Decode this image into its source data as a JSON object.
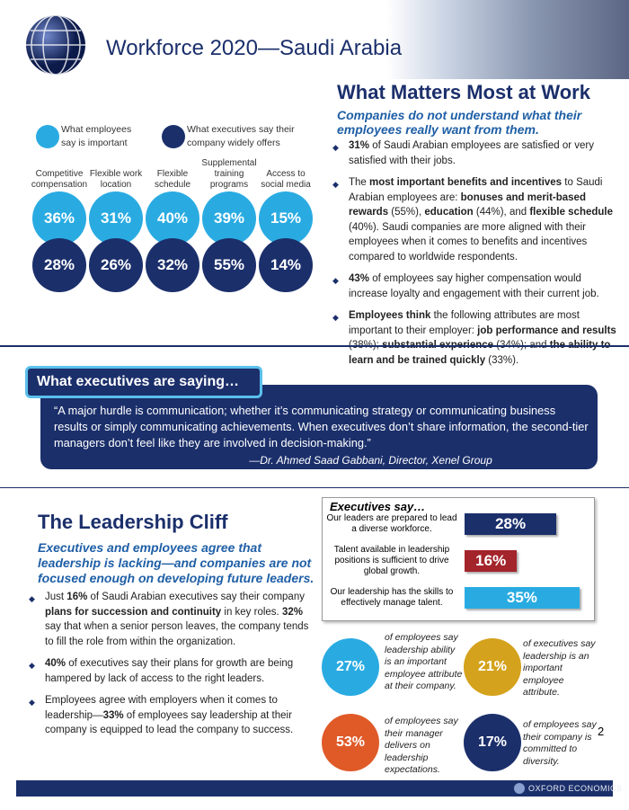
{
  "header": {
    "title": "Workforce 2020—Saudi Arabia"
  },
  "what_matters": {
    "title": "What Matters Most at Work",
    "subtitle": "Companies do not understand what their employees really want from them.",
    "legend": [
      {
        "label": "What employees say is important",
        "color": "#29abe2"
      },
      {
        "label": "What executives say their company widely offers",
        "color": "#1b2f6b"
      }
    ],
    "categories": [
      {
        "label": "Competitive compensation",
        "employees": "36%",
        "executives": "28%"
      },
      {
        "label": "Flexible work location",
        "employees": "31%",
        "executives": "26%"
      },
      {
        "label": "Flexible schedule",
        "employees": "40%",
        "executives": "32%"
      },
      {
        "label": "Supplemental training programs",
        "employees": "39%",
        "executives": "55%"
      },
      {
        "label": "Access to social media",
        "employees": "15%",
        "executives": "14%"
      }
    ],
    "bullets": [
      [
        {
          "text": "31%",
          "bold": true
        },
        {
          "text": " of Saudi Arabian employees are satisfied or very satisfied with their jobs."
        }
      ],
      [
        {
          "text": "The "
        },
        {
          "text": "most important benefits and incentives",
          "bold": true
        },
        {
          "text": " to Saudi Arabian employees are: "
        },
        {
          "text": "bonuses and merit-based rewards",
          "bold": true
        },
        {
          "text": " (55%), "
        },
        {
          "text": "education",
          "bold": true
        },
        {
          "text": " (44%), and "
        },
        {
          "text": "flexible schedule",
          "bold": true
        },
        {
          "text": " (40%). Saudi companies are more aligned with their employees when it comes to benefits and incentives compared to worldwide respondents."
        }
      ],
      [
        {
          "text": "43%",
          "bold": true
        },
        {
          "text": " of employees say higher compensation would increase loyalty and engagement with their current job."
        }
      ],
      [
        {
          "text": "Employees think",
          "bold": true
        },
        {
          "text": " the following attributes are most important to their employer: "
        },
        {
          "text": "job performance and results",
          "bold": true
        },
        {
          "text": " (38%); "
        },
        {
          "text": "substantial experience",
          "bold": true
        },
        {
          "text": " (34%); and "
        },
        {
          "text": "the ability to learn and be trained quickly",
          "bold": true
        },
        {
          "text": " (33%)."
        }
      ]
    ]
  },
  "quote": {
    "heading": "What executives are saying…",
    "text": "“A major hurdle is communication; whether it’s communicating strategy or communicating business results or simply communicating achievements. When executives don’t share information, the second-tier managers don’t feel like they are involved in decision-making.”",
    "attribution": "—Dr. Ahmed Saad Gabbani, Director, Xenel Group"
  },
  "leadership": {
    "title": "The Leadership Cliff",
    "subtitle": "Executives and employees agree that leadership is lacking—and companies are not focused enough on developing future leaders.",
    "bullets": [
      [
        {
          "text": "Just "
        },
        {
          "text": "16%",
          "bold": true
        },
        {
          "text": " of Saudi Arabian executives say their company "
        },
        {
          "text": "plans for succession and continuity",
          "bold": true
        },
        {
          "text": " in key roles. "
        },
        {
          "text": "32%",
          "bold": true
        },
        {
          "text": " say that when a senior person leaves, the company tends to fill the role from within the organization."
        }
      ],
      [
        {
          "text": "40%",
          "bold": true
        },
        {
          "text": " of executives say their plans for growth are being hampered by lack of access to the right leaders."
        }
      ],
      [
        {
          "text": "Employees agree with employers when it comes to leadership—"
        },
        {
          "text": "33%",
          "bold": true
        },
        {
          "text": " of employees say leadership at their company is equipped to lead the company to success."
        }
      ]
    ]
  },
  "executives_say": {
    "title": "Executives say…",
    "bars": [
      {
        "label": "Our leaders are prepared to lead a diverse workforce.",
        "value": 28,
        "value_label": "28%",
        "color": "#1b2f6b"
      },
      {
        "label": "Talent available in leadership positions is sufficient to drive global growth.",
        "value": 16,
        "value_label": "16%",
        "color": "#a3242b"
      },
      {
        "label": "Our leadership has the skills to effectively manage talent.",
        "value": 35,
        "value_label": "35%",
        "color": "#29abe2"
      }
    ]
  },
  "stats": [
    {
      "value": "27%",
      "text": "of employees say leadership ability is an important employee attribute at their company.",
      "color": "#29abe2"
    },
    {
      "value": "21%",
      "text": "of executives say leadership is an important employee attribute.",
      "color": "#d4a21c"
    },
    {
      "value": "53%",
      "text": "of employees say their manager delivers on leadership expectations.",
      "color": "#e05a28"
    },
    {
      "value": "17%",
      "text": "of employees say their company is committed to diversity.",
      "color": "#1b2f6b"
    }
  ],
  "footer": {
    "page": "2",
    "brand": "OXFORD ECONOMICS"
  }
}
